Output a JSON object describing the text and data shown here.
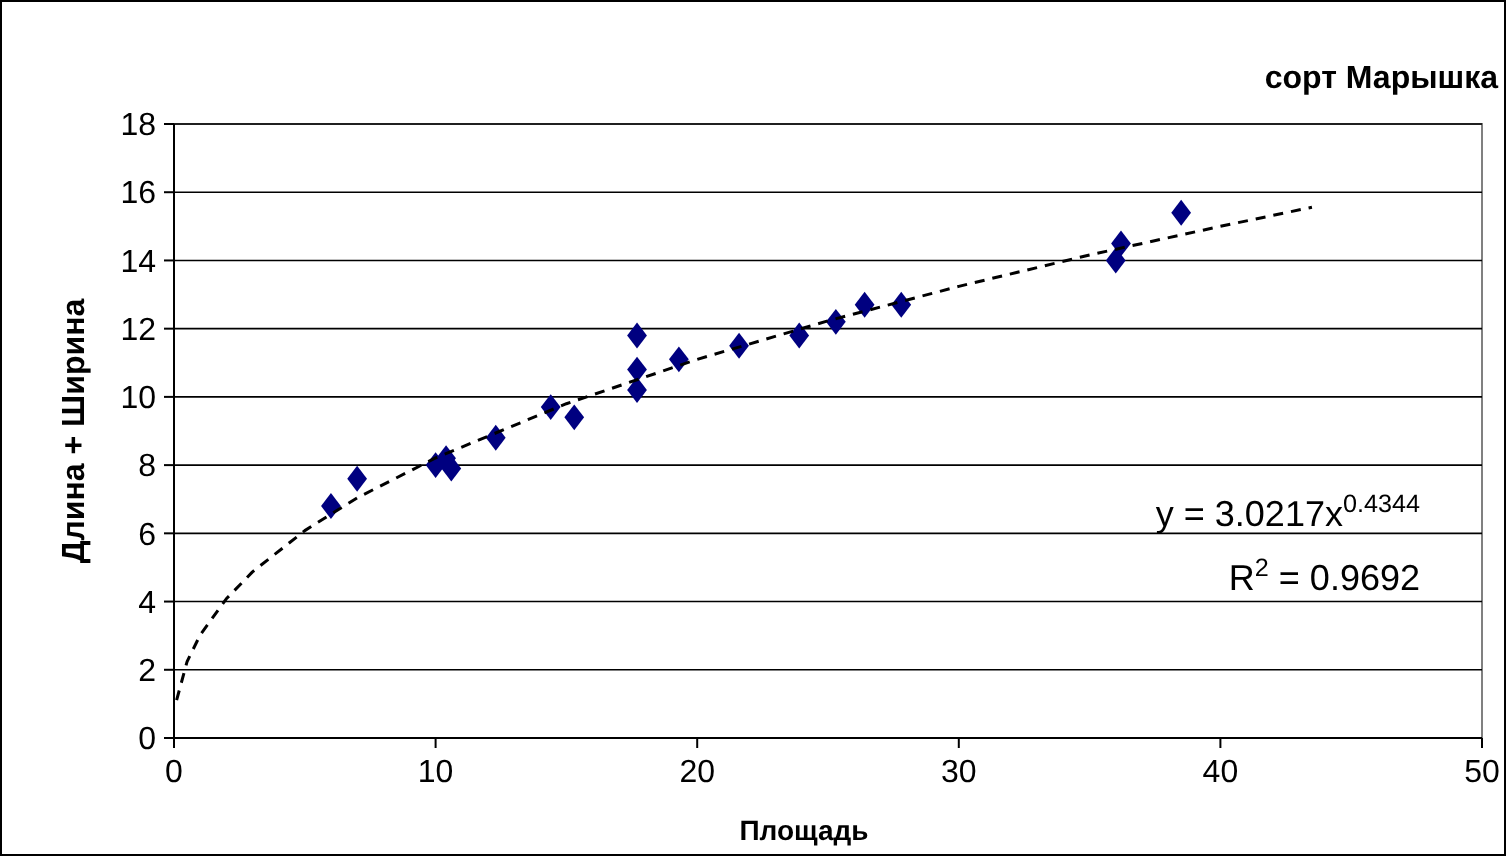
{
  "chart_data": {
    "type": "scatter",
    "title": "сорт Марышка",
    "xlabel": "Площадь",
    "ylabel": "Длина + Ширина",
    "xlim": [
      0,
      50
    ],
    "xticks": [
      0,
      10,
      20,
      30,
      40,
      50
    ],
    "ylim": [
      0,
      18
    ],
    "yticks": [
      0,
      2,
      4,
      6,
      8,
      10,
      12,
      14,
      16,
      18
    ],
    "grid": "y",
    "marker": "diamond",
    "series": [
      {
        "color": "#000080",
        "x": [
          6.0,
          7.0,
          10.0,
          10.4,
          10.6,
          12.3,
          14.4,
          15.3,
          17.7,
          17.7,
          17.7,
          19.3,
          21.6,
          23.9,
          25.3,
          26.4,
          27.8,
          36.0,
          36.2,
          38.5
        ],
        "values": [
          6.8,
          7.6,
          8.0,
          8.2,
          7.9,
          8.8,
          9.7,
          9.4,
          11.8,
          10.8,
          10.2,
          11.1,
          11.5,
          11.8,
          12.2,
          12.7,
          12.7,
          14.0,
          14.5,
          15.4
        ]
      },
      {
        "type": "line",
        "color": "#000000",
        "line_style": "dashed",
        "marker": "none",
        "x": [
          0.1,
          0.5,
          1,
          2,
          3,
          5,
          7,
          10,
          15,
          20,
          25,
          30,
          35,
          40,
          43.5
        ],
        "values": [
          1.11,
          2.24,
          3.02,
          4.08,
          4.87,
          6.08,
          7.04,
          8.21,
          9.8,
          11.1,
          12.23,
          13.24,
          14.16,
          15.0,
          15.56
        ]
      }
    ],
    "annotations": [
      "y = 3.0217x$^{0.4344}$",
      "R$^{2}$ = 0.9692"
    ]
  }
}
